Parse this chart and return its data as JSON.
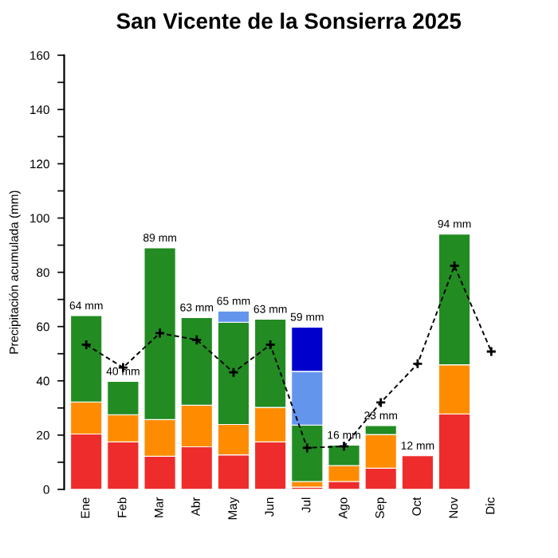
{
  "chart_data": {
    "type": "bar",
    "title": "San Vicente de la Sonsierra 2025",
    "ylabel": "Precipitación acumulada (mm)",
    "categories": [
      "Ene",
      "Feb",
      "Mar",
      "Abr",
      "May",
      "Jun",
      "Jul",
      "Ago",
      "Sep",
      "Oct",
      "Nov",
      "Dic"
    ],
    "stacked": true,
    "series": [
      {
        "color": "#ee2c2c",
        "values": [
          20.4,
          17.5,
          12.2,
          15.7,
          12.7,
          17.5,
          0.8,
          2.9,
          7.8,
          12.4,
          27.8,
          null
        ]
      },
      {
        "color": "#ff8c00",
        "values": [
          11.8,
          10.0,
          13.5,
          15.3,
          11.2,
          12.7,
          2.1,
          5.9,
          12.4,
          null,
          18.1,
          null
        ]
      },
      {
        "color": "#228b22",
        "values": [
          31.8,
          12.3,
          63.3,
          32.3,
          37.7,
          32.5,
          20.8,
          7.5,
          3.3,
          null,
          48.2,
          null
        ]
      },
      {
        "color": "#6495ed",
        "values": [
          null,
          null,
          null,
          null,
          4.1,
          null,
          19.8,
          null,
          null,
          null,
          null,
          null
        ]
      },
      {
        "color": "#0000cd",
        "values": [
          null,
          null,
          null,
          null,
          null,
          null,
          16.3,
          null,
          null,
          null,
          null,
          null
        ]
      },
      {
        "type": "line",
        "color": "#000000",
        "marker": "cross",
        "line_style": "dashed",
        "values": [
          53.3,
          44.9,
          57.6,
          55.1,
          43.1,
          53.3,
          15.3,
          15.9,
          32.0,
          46.3,
          82.4,
          50.8
        ]
      }
    ],
    "totals": [
      "64 mm",
      "40 mm",
      "89 mm",
      "63 mm",
      "65 mm",
      "63 mm",
      "59 mm",
      "16 mm",
      "23 mm",
      "12 mm",
      "94 mm",
      null
    ],
    "ylim": [
      0,
      160
    ],
    "yticks": [
      0,
      {
        "value": 10,
        "label": null
      },
      20,
      {
        "value": 30,
        "label": null
      },
      40,
      {
        "value": 50,
        "label": null
      },
      60,
      {
        "value": 70,
        "label": null
      },
      80,
      {
        "value": 90,
        "label": null
      },
      100,
      {
        "value": 110,
        "label": null
      },
      120,
      {
        "value": 130,
        "label": null
      },
      140,
      {
        "value": 150,
        "label": null
      },
      160
    ],
    "grid": false,
    "legend": false
  }
}
